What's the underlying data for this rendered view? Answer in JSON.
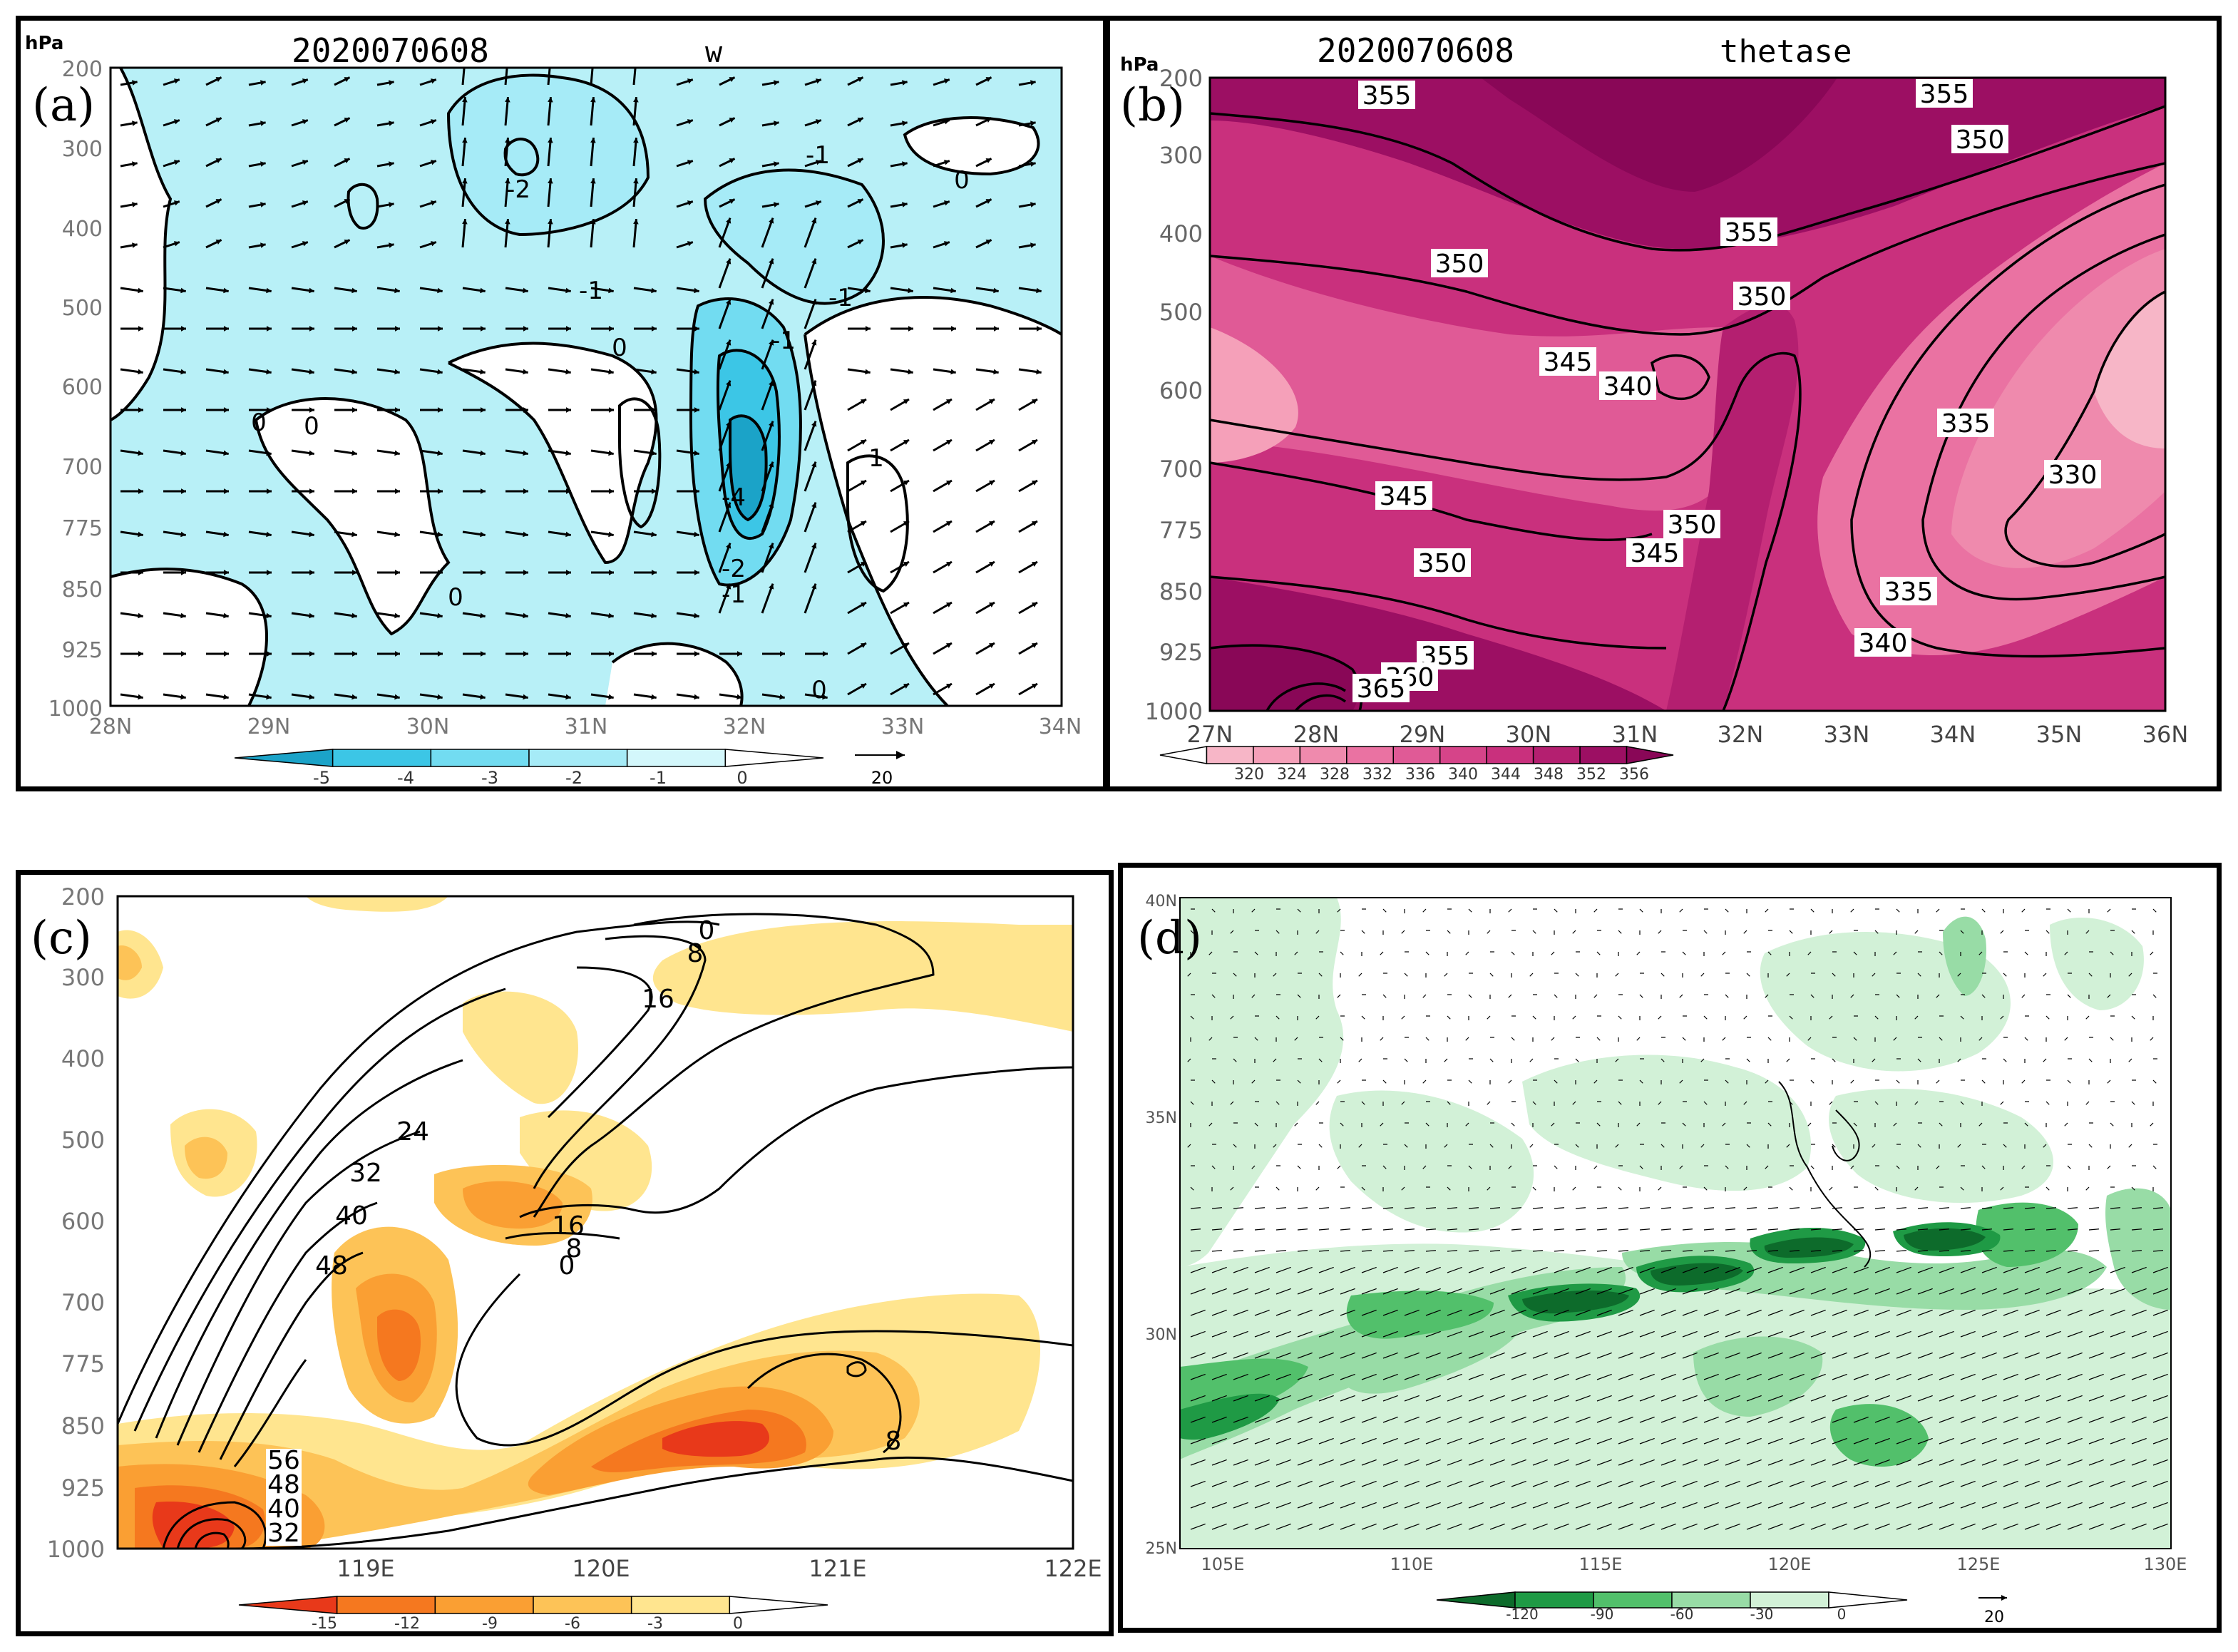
{
  "figure": {
    "panels": [
      {
        "id": "a",
        "letter": "(a)",
        "header_time": "2020070608",
        "header_var": "w",
        "y_unit": "hPa",
        "y_ticks": [
          "200",
          "300",
          "400",
          "500",
          "600",
          "700",
          "775",
          "850",
          "925",
          "1000"
        ],
        "x_ticks": [
          "28N",
          "29N",
          "30N",
          "31N",
          "32N",
          "33N",
          "34N"
        ],
        "colorbar_labels": [
          "-5",
          "-4",
          "-3",
          "-2",
          "-1",
          "0"
        ],
        "colorbar_colors": [
          "#1ba3c8",
          "#3cc6e6",
          "#72dcf1",
          "#a6ebf7",
          "#d3f7fb",
          "#ffffff"
        ],
        "vector_ref": "20",
        "contour_labels": [
          "-2",
          "-1",
          "-1",
          "0",
          "0",
          "0",
          "0",
          "-1",
          "-2",
          "-4",
          "-1",
          "1",
          "0",
          "0",
          "-1"
        ]
      },
      {
        "id": "b",
        "letter": "(b)",
        "header_time": "2020070608",
        "header_var": "thetase",
        "y_unit": "hPa",
        "y_ticks": [
          "200",
          "300",
          "400",
          "500",
          "600",
          "700",
          "775",
          "850",
          "925",
          "1000"
        ],
        "x_ticks": [
          "27N",
          "28N",
          "29N",
          "30N",
          "31N",
          "32N",
          "33N",
          "34N",
          "35N",
          "36N"
        ],
        "colorbar_labels": [
          "320",
          "324",
          "328",
          "332",
          "336",
          "340",
          "344",
          "348",
          "352",
          "356"
        ],
        "colorbar_colors": [
          "#ffffff",
          "#f7b6c7",
          "#f5a0b9",
          "#ef8aad",
          "#ea72a2",
          "#e05a96",
          "#d64489",
          "#c9307d",
          "#b41f70",
          "#9c0f63",
          "#890757"
        ],
        "contour_labels": [
          "355",
          "355",
          "350",
          "350",
          "355",
          "350",
          "345",
          "340",
          "335",
          "330",
          "345",
          "350",
          "345",
          "350",
          "335",
          "340",
          "355",
          "360",
          "365"
        ]
      },
      {
        "id": "c",
        "letter": "(c)",
        "y_ticks": [
          "200",
          "300",
          "400",
          "500",
          "600",
          "700",
          "775",
          "850",
          "925",
          "1000"
        ],
        "x_ticks": [
          "119E",
          "120E",
          "121E",
          "122E"
        ],
        "colorbar_labels": [
          "-15",
          "-12",
          "-9",
          "-6",
          "-3",
          "0"
        ],
        "colorbar_colors": [
          "#e8391a",
          "#f5781f",
          "#fa9f33",
          "#fdc357",
          "#ffe58f",
          "#ffffff"
        ],
        "contour_labels": [
          "0",
          "8",
          "16",
          "24",
          "32",
          "40",
          "48",
          "16",
          "8",
          "0",
          "8",
          "56",
          "48",
          "40",
          "32"
        ]
      },
      {
        "id": "d",
        "letter": "(d)",
        "y_ticks": [
          "40N",
          "35N",
          "30N",
          "25N"
        ],
        "x_ticks": [
          "105E",
          "110E",
          "115E",
          "120E",
          "125E",
          "130E"
        ],
        "colorbar_labels": [
          "-120",
          "-90",
          "-60",
          "-30",
          "0"
        ],
        "colorbar_colors": [
          "#0d6b2b",
          "#1f9a45",
          "#52c06b",
          "#98dca6",
          "#d2f1d7",
          "#ffffff"
        ],
        "vector_ref": "20"
      }
    ]
  },
  "chart_data": [
    {
      "type": "heatmap",
      "title": "2020070608 w",
      "ylabel": "hPa",
      "x": [
        "28N",
        "29N",
        "30N",
        "31N",
        "32N",
        "33N",
        "34N"
      ],
      "y": [
        200,
        300,
        400,
        500,
        600,
        700,
        775,
        850,
        925,
        1000
      ],
      "color_levels": [
        -5,
        -4,
        -3,
        -2,
        -1,
        0
      ],
      "contours": [
        -4,
        -2,
        -1,
        0,
        1
      ],
      "wind_vectors": true,
      "min_region": {
        "lat": "32N",
        "level_hPa": 700,
        "value": -4
      }
    },
    {
      "type": "heatmap",
      "title": "2020070608 thetase",
      "ylabel": "hPa",
      "x": [
        "27N",
        "28N",
        "29N",
        "30N",
        "31N",
        "32N",
        "33N",
        "34N",
        "35N",
        "36N"
      ],
      "y": [
        200,
        300,
        400,
        500,
        600,
        700,
        775,
        850,
        925,
        1000
      ],
      "color_levels": [
        320,
        324,
        328,
        332,
        336,
        340,
        344,
        348,
        352,
        356
      ],
      "contours": [
        330,
        335,
        340,
        345,
        350,
        355,
        360,
        365
      ]
    },
    {
      "type": "heatmap",
      "x": [
        "119E",
        "120E",
        "121E",
        "122E"
      ],
      "y": [
        200,
        300,
        400,
        500,
        600,
        700,
        775,
        850,
        925,
        1000
      ],
      "color_levels": [
        -15,
        -12,
        -9,
        -6,
        -3,
        0
      ],
      "contours": [
        0,
        8,
        16,
        24,
        32,
        40,
        48,
        56
      ]
    },
    {
      "type": "heatmap",
      "x": [
        "105E",
        "110E",
        "115E",
        "120E",
        "125E",
        "130E"
      ],
      "y": [
        "25N",
        "30N",
        "35N",
        "40N"
      ],
      "color_levels": [
        -120,
        -90,
        -60,
        -30,
        0
      ],
      "wind_vectors": true
    }
  ]
}
